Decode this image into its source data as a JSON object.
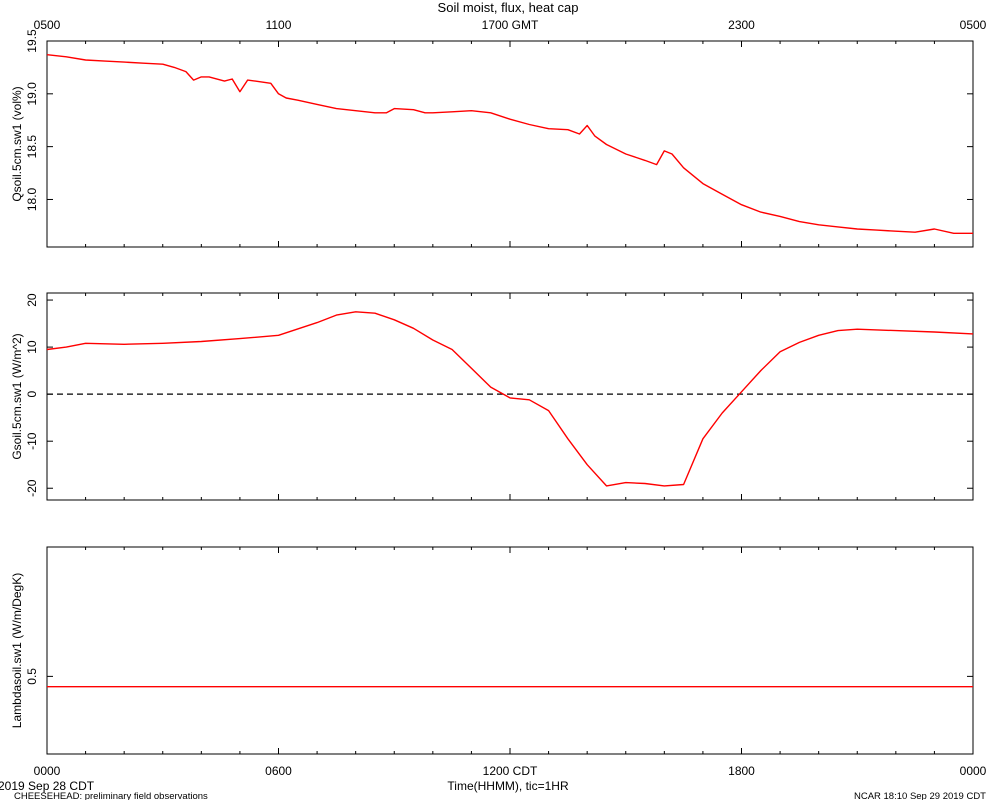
{
  "header": {
    "title": "Soil moist, flux, heat cap",
    "top_axis_ticks": [
      "0500",
      "1100",
      "1700 GMT",
      "2300",
      "0500"
    ]
  },
  "footer": {
    "bottom_axis_ticks": [
      "0000",
      "0600",
      "1200 CDT",
      "1800",
      "0000"
    ],
    "xlabel": "Time(HHMM), tic=1HR",
    "date": "2019 Sep 28 CDT",
    "project": "CHEESEHEAD: preliminary field observations",
    "stamp": "NCAR 18:10 Sep 29 2019 CDT"
  },
  "colors": {
    "series": "#ff0000",
    "axes": "#000000",
    "zero_line": "#000000"
  },
  "chart_data": [
    {
      "type": "line",
      "ylabel": "Qsoil.5cm.sw1 (vol%)",
      "ylim": [
        17.55,
        19.5
      ],
      "yticks": [
        18.0,
        18.5,
        19.0,
        19.5
      ],
      "xlim": [
        0,
        24
      ],
      "series": [
        {
          "x": [
            0,
            0.5,
            1,
            1.5,
            2,
            2.5,
            3,
            3.3,
            3.6,
            3.8,
            4.0,
            4.2,
            4.6,
            4.8,
            5.0,
            5.2,
            5.4,
            5.8,
            6.0,
            6.2,
            6.5,
            7.0,
            7.5,
            8.0,
            8.5,
            8.8,
            9.0,
            9.5,
            9.8,
            10.0,
            10.5,
            11.0,
            11.5,
            12.0,
            12.5,
            13.0,
            13.5,
            13.8,
            14.0,
            14.2,
            14.5,
            15.0,
            15.5,
            15.8,
            16.0,
            16.2,
            16.5,
            17.0,
            17.5,
            18.0,
            18.5,
            19.0,
            19.5,
            20.0,
            20.5,
            21.0,
            21.5,
            22.0,
            22.5,
            23.0,
            23.5,
            24.0
          ],
          "y": [
            19.37,
            19.35,
            19.32,
            19.31,
            19.3,
            19.29,
            19.28,
            19.25,
            19.21,
            19.13,
            19.16,
            19.16,
            19.12,
            19.14,
            19.02,
            19.13,
            19.12,
            19.1,
            19.0,
            18.96,
            18.94,
            18.9,
            18.86,
            18.84,
            18.82,
            18.82,
            18.86,
            18.85,
            18.82,
            18.82,
            18.83,
            18.84,
            18.82,
            18.76,
            18.71,
            18.67,
            18.66,
            18.62,
            18.7,
            18.6,
            18.52,
            18.43,
            18.37,
            18.33,
            18.46,
            18.43,
            18.3,
            18.15,
            18.05,
            17.95,
            17.88,
            17.84,
            17.79,
            17.76,
            17.74,
            17.72,
            17.71,
            17.7,
            17.69,
            17.72,
            17.68,
            17.68
          ]
        }
      ]
    },
    {
      "type": "line",
      "ylabel": "Gsoil.5cm.sw1 (W/m^2)",
      "ylim": [
        -22.5,
        21.5
      ],
      "yticks": [
        -20,
        -10,
        0,
        10,
        20
      ],
      "xlim": [
        0,
        24
      ],
      "zero_line": true,
      "series": [
        {
          "x": [
            0,
            0.5,
            1,
            1.5,
            2,
            3,
            4,
            5,
            6,
            7,
            7.5,
            8,
            8.5,
            9,
            9.5,
            10,
            10.5,
            11,
            11.5,
            12,
            12.5,
            13,
            13.5,
            14,
            14.5,
            15,
            15.5,
            16,
            16.5,
            17,
            17.5,
            18,
            18.5,
            19,
            19.5,
            20,
            20.5,
            21,
            22,
            23,
            24
          ],
          "y": [
            9.5,
            10,
            10.8,
            10.7,
            10.6,
            10.8,
            11.2,
            11.8,
            12.5,
            15.2,
            16.8,
            17.5,
            17.2,
            15.8,
            14,
            11.5,
            9.5,
            5.5,
            1.5,
            -0.8,
            -1.2,
            -3.5,
            -9.5,
            -15,
            -19.5,
            -18.8,
            -19,
            -19.5,
            -19.2,
            -9.5,
            -4,
            0.5,
            5,
            9,
            11,
            12.5,
            13.5,
            13.8,
            13.5,
            13.2,
            12.8
          ]
        }
      ]
    },
    {
      "type": "line",
      "ylabel": "Lambdasoil.sw1 (W/m/DegK)",
      "ylim": [
        0.2,
        1.0
      ],
      "yticks": [
        0.5
      ],
      "xlim": [
        0,
        24
      ],
      "series": [
        {
          "x": [
            0,
            24
          ],
          "y": [
            0.46,
            0.46
          ]
        }
      ]
    }
  ]
}
